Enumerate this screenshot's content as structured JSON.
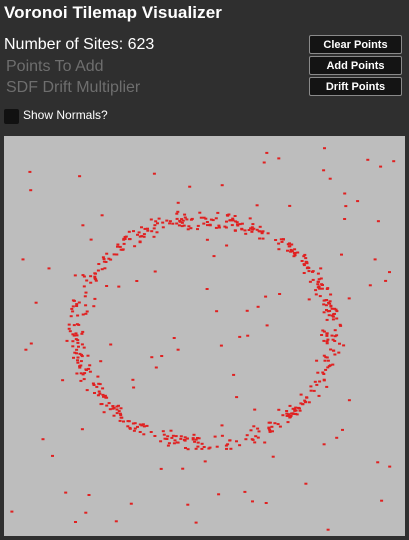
{
  "app": {
    "title": "Voronoi Tilemap Visualizer"
  },
  "stats": {
    "sites_label": "Number of Sites: 623"
  },
  "inputs": {
    "points_to_add_placeholder": "Points To Add",
    "drift_multiplier_placeholder": "SDF Drift Multiplier"
  },
  "buttons": {
    "clear": "Clear Points",
    "add": "Add Points",
    "drift": "Drift Points"
  },
  "options": {
    "show_normals_label": "Show Normals?",
    "show_normals_checked": false
  },
  "canvas": {
    "background": "#bdbdbd",
    "point_color": "#e02020",
    "site_count": 623
  }
}
